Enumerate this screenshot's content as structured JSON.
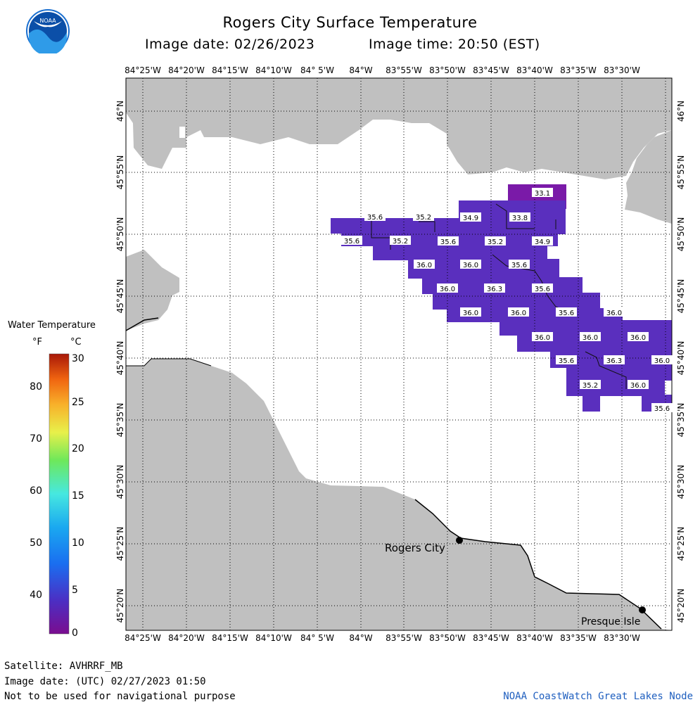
{
  "title": "Rogers City Surface Temperature",
  "image_date_line": "Image date: 02/26/2023",
  "image_time_line": "Image time: 20:50 (EST)",
  "logo_text": "NOAA",
  "longitude_labels": [
    "84°25'W",
    "84°20'W",
    "84°15'W",
    "84°10'W",
    "84° 5'W",
    "84°W",
    "83°55'W",
    "83°50'W",
    "83°45'W",
    "83°40'W",
    "83°35'W",
    "83°30'W"
  ],
  "latitude_labels": [
    "46°N",
    "45°55'N",
    "45°50'N",
    "45°45'N",
    "45°40'N",
    "45°35'N",
    "45°30'N",
    "45°25'N",
    "45°20'N"
  ],
  "places": [
    {
      "name": "Rogers City"
    },
    {
      "name": "Presque Isle"
    }
  ],
  "legend": {
    "title": "Water Temperature",
    "unit_f": "°F",
    "unit_c": "°C",
    "f_ticks": [
      "80",
      "70",
      "60",
      "50",
      "40"
    ],
    "c_ticks": [
      "30",
      "25",
      "20",
      "15",
      "10",
      "5",
      "0"
    ]
  },
  "temperature_labels": [
    {
      "text": "33.1"
    },
    {
      "text": "35.6"
    },
    {
      "text": "35.2"
    },
    {
      "text": "34.9"
    },
    {
      "text": "33.8"
    },
    {
      "text": "35.6"
    },
    {
      "text": "35.2"
    },
    {
      "text": "35.6"
    },
    {
      "text": "35.2"
    },
    {
      "text": "34.9"
    },
    {
      "text": "36.0"
    },
    {
      "text": "36.0"
    },
    {
      "text": "35.6"
    },
    {
      "text": "36.0"
    },
    {
      "text": "36.3"
    },
    {
      "text": "35.6"
    },
    {
      "text": "36.0"
    },
    {
      "text": "36.0"
    },
    {
      "text": "35.6"
    },
    {
      "text": "36.0"
    },
    {
      "text": "36.0"
    },
    {
      "text": "36.0"
    },
    {
      "text": "36.0"
    },
    {
      "text": "35.6"
    },
    {
      "text": "36.3"
    },
    {
      "text": "36.0"
    },
    {
      "text": "35.2"
    },
    {
      "text": "36.0"
    },
    {
      "text": "35.6"
    }
  ],
  "footer": {
    "satellite": "Satellite: AVHRRF_MB",
    "utc_date": "Image date: (UTC) 02/27/2023  01:50",
    "disclaimer": "Not to be used for navigational purpose",
    "credit": "NOAA CoastWatch Great Lakes Node"
  },
  "colors": {
    "land": "#c0c0c0",
    "water": "#ffffff",
    "temperature_fill": "#5a2fbe",
    "cold_fill": "#7a1aa8"
  }
}
